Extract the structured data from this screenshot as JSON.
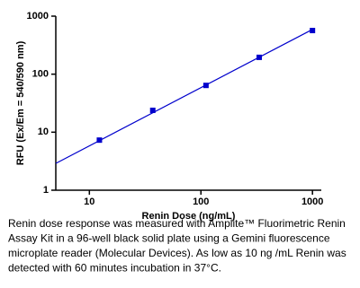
{
  "chart_data": {
    "type": "scatter",
    "x_label": "Renin Dose (ng/mL)",
    "y_label": "RFU (Ex/Em = 540/590 nm)",
    "x_log": true,
    "y_log": true,
    "xlim": [
      5,
      1200
    ],
    "ylim": [
      1,
      1000
    ],
    "xticks": [
      10,
      100,
      1000
    ],
    "yticks": [
      1,
      10,
      100,
      1000
    ],
    "series": [
      {
        "name": "Renin",
        "color": "#0000cc",
        "x": [
          12.3,
          37,
          111,
          333,
          1000
        ],
        "values": [
          7.3,
          23.8,
          64,
          195,
          565
        ]
      }
    ],
    "fit_line": {
      "color": "#0000cc",
      "x": [
        5,
        1000
      ],
      "values": [
        2.9,
        590
      ]
    },
    "caption": [
      "Renin dose response was measured with Amplite™ Fluorimetric Renin",
      "Assay Kit in a 96-well black solid plate using a Gemini fluorescence",
      "microplate reader (Molecular Devices). As low as 10 ng /mL Renin was",
      "detected with 60 minutes incubation in 37°C."
    ]
  }
}
